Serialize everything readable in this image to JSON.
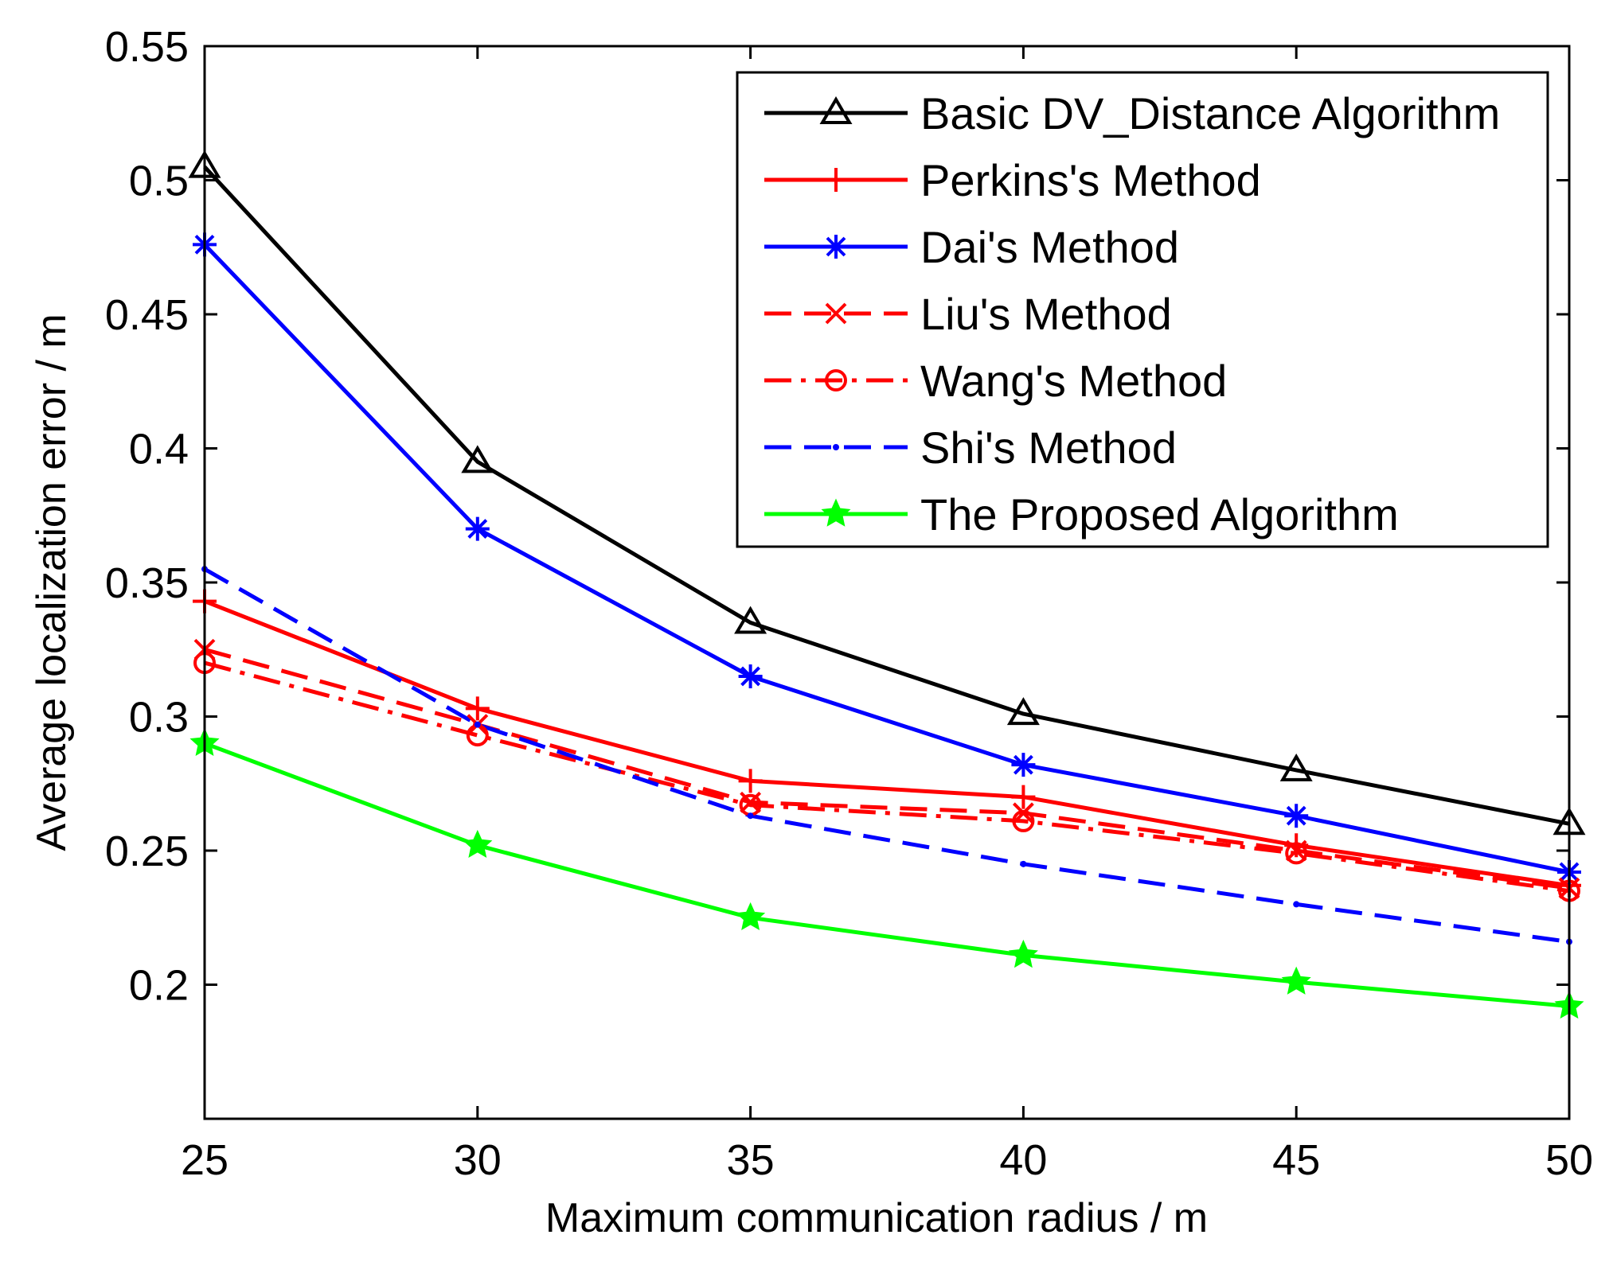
{
  "chart_data": {
    "type": "line",
    "title": "",
    "xlabel": "Maximum communication radius / m",
    "ylabel": "Average localization error / m",
    "x": [
      25,
      30,
      35,
      40,
      45,
      50
    ],
    "xlim": [
      25,
      50
    ],
    "ylim": [
      0.15,
      0.55
    ],
    "xticks": [
      "25",
      "30",
      "35",
      "40",
      "45",
      "50"
    ],
    "yticks": [
      "0.2",
      "0.25",
      "0.3",
      "0.35",
      "0.4",
      "0.45",
      "0.5",
      "0.55"
    ],
    "grid": false,
    "legend_position": "top-right",
    "series": [
      {
        "name": "Basic DV_Distance Algorithm",
        "values": [
          0.505,
          0.395,
          0.335,
          0.301,
          0.28,
          0.26
        ],
        "color": "#000000",
        "dash": "solid",
        "marker": "triangle"
      },
      {
        "name": "Perkins's Method",
        "values": [
          0.343,
          0.303,
          0.276,
          0.27,
          0.252,
          0.237
        ],
        "color": "#ff0000",
        "dash": "solid",
        "marker": "plus"
      },
      {
        "name": "Dai's Method",
        "values": [
          0.476,
          0.37,
          0.315,
          0.282,
          0.263,
          0.242
        ],
        "color": "#0000ff",
        "dash": "solid",
        "marker": "asterisk"
      },
      {
        "name": "Liu's Method",
        "values": [
          0.325,
          0.297,
          0.268,
          0.264,
          0.25,
          0.236
        ],
        "color": "#ff0000",
        "dash": "dashed",
        "marker": "x"
      },
      {
        "name": "Wang's Method",
        "values": [
          0.32,
          0.293,
          0.267,
          0.261,
          0.249,
          0.235
        ],
        "color": "#ff0000",
        "dash": "dashdot",
        "marker": "circle"
      },
      {
        "name": "Shi's Method",
        "values": [
          0.355,
          0.297,
          0.263,
          0.245,
          0.23,
          0.216
        ],
        "color": "#0000ff",
        "dash": "dashed",
        "marker": "dot"
      },
      {
        "name": "The Proposed Algorithm",
        "values": [
          0.29,
          0.252,
          0.225,
          0.211,
          0.201,
          0.192
        ],
        "color": "#00ff00",
        "dash": "solid",
        "marker": "star"
      }
    ]
  }
}
